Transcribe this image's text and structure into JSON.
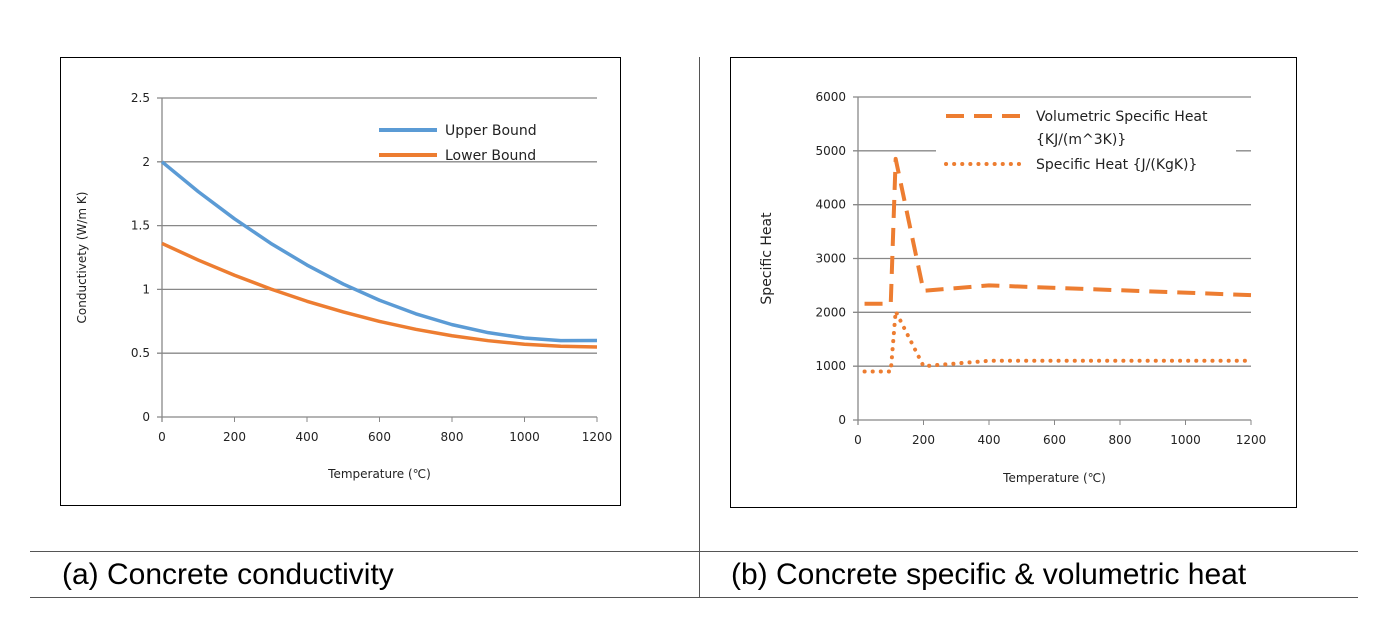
{
  "chart_data": [
    {
      "type": "line",
      "xlabel": "Temperature (℃)",
      "ylabel": "Conductivety (W/m K)",
      "xlim": [
        0,
        1200
      ],
      "ylim": [
        0,
        2.5
      ],
      "xticks": [
        "0",
        "200",
        "400",
        "600",
        "800",
        "1000",
        "1200"
      ],
      "yticks": [
        "0",
        "0.5",
        "1",
        "1.5",
        "2",
        "2.5"
      ],
      "grid": "horizontal",
      "legend": "top-right",
      "x": [
        0,
        100,
        200,
        300,
        400,
        500,
        600,
        700,
        800,
        900,
        1000,
        1100,
        1200
      ],
      "series": [
        {
          "name": "Upper Bound",
          "color": "#5b9bd5",
          "style": "solid",
          "values": [
            2.0,
            1.766,
            1.553,
            1.361,
            1.191,
            1.042,
            0.915,
            0.809,
            0.724,
            0.661,
            0.619,
            0.599,
            0.6
          ]
        },
        {
          "name": "Lower Bound",
          "color": "#ed7d31",
          "style": "solid",
          "values": [
            1.36,
            1.23,
            1.111,
            1.003,
            0.907,
            0.823,
            0.749,
            0.687,
            0.637,
            0.598,
            0.57,
            0.554,
            0.549
          ]
        }
      ],
      "caption": "(a) Concrete conductivity"
    },
    {
      "type": "line",
      "xlabel": "Temperature (℃)",
      "ylabel": "Specific Heat",
      "xlim": [
        0,
        1200
      ],
      "ylim": [
        0,
        6000
      ],
      "xticks": [
        "0",
        "200",
        "400",
        "600",
        "800",
        "1000",
        "1200"
      ],
      "yticks": [
        "0",
        "1000",
        "2000",
        "3000",
        "4000",
        "5000",
        "6000"
      ],
      "grid": "horizontal",
      "legend": "top-right",
      "series": [
        {
          "name": "Volumetric Specific Heat {KJ/(m^3K)}",
          "color": "#ed7d31",
          "style": "dashed",
          "x": [
            20,
            100,
            115,
            200,
            400,
            1200
          ],
          "values": [
            2160,
            2160,
            4850,
            2400,
            2500,
            2320
          ]
        },
        {
          "name": "Specific Heat {J/(KgK)}",
          "color": "#ed7d31",
          "style": "dotted",
          "x": [
            20,
            100,
            115,
            200,
            400,
            1200
          ],
          "values": [
            900,
            900,
            2020,
            1000,
            1100,
            1100
          ]
        }
      ],
      "legend_lines": [
        "Volumetric Specific Heat",
        "{KJ/(m^3K)}",
        "Specific Heat {J/(KgK)}"
      ],
      "caption": "(b) Concrete specific & volumetric heat"
    }
  ]
}
